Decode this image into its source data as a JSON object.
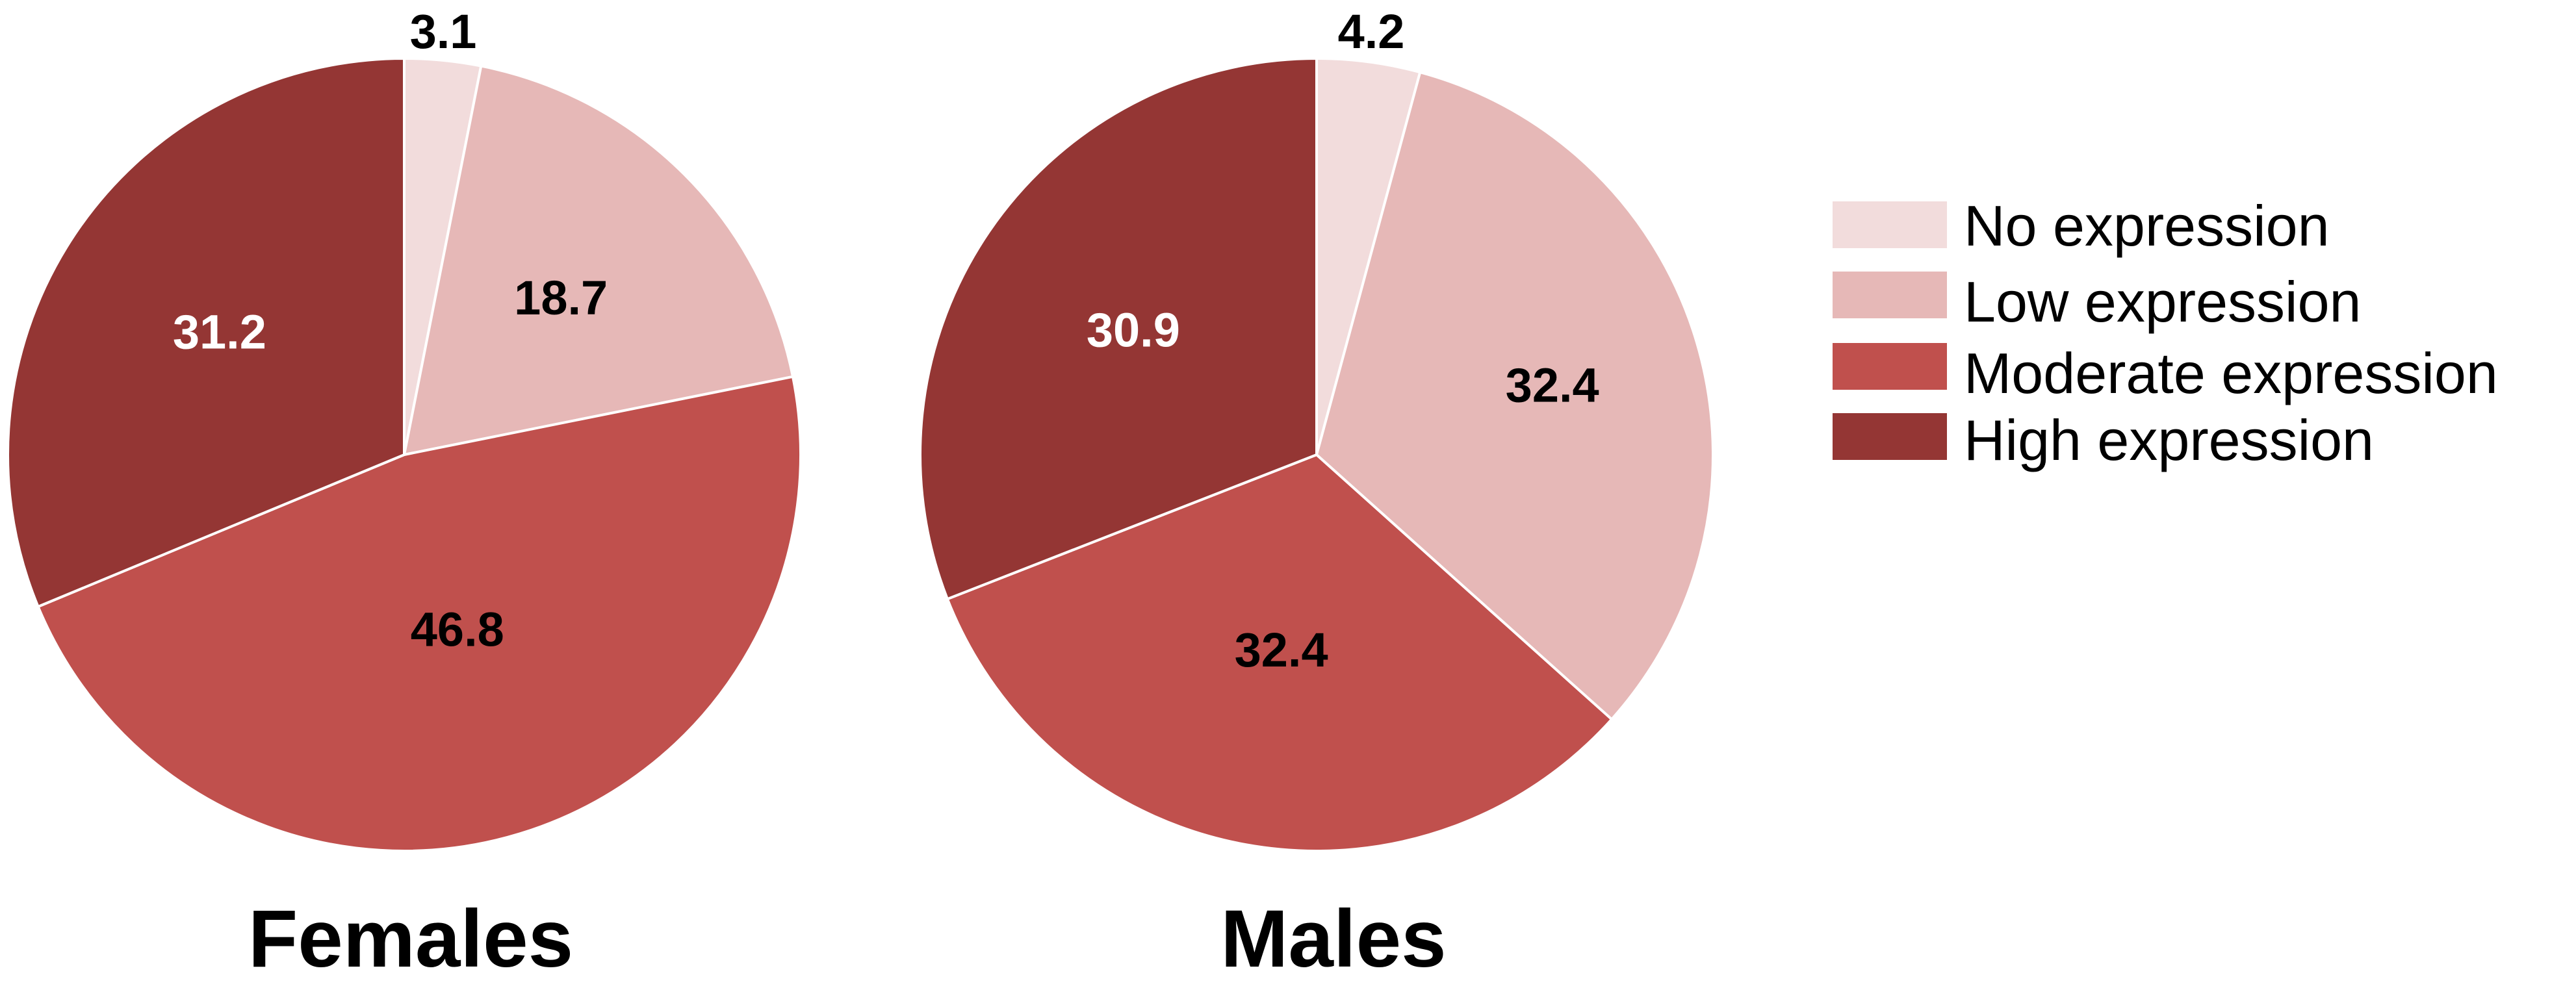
{
  "chart_data": [
    {
      "type": "pie",
      "title": "Females",
      "categories": [
        "No expression",
        "Low expression",
        "Moderate expression",
        "High expression"
      ],
      "values": [
        3.1,
        18.7,
        46.8,
        31.2
      ],
      "labels": [
        "3.1",
        "18.7",
        "46.8",
        "31.2"
      ]
    },
    {
      "type": "pie",
      "title": "Males",
      "categories": [
        "No expression",
        "Low expression",
        "Moderate expression",
        "High expression"
      ],
      "values": [
        4.2,
        32.4,
        32.4,
        30.9
      ],
      "labels": [
        "4.2",
        "32.4",
        "32.4",
        "30.9"
      ]
    }
  ],
  "legend": {
    "placement": "right",
    "items": [
      {
        "label": "No expression",
        "color": "#f2dcdc"
      },
      {
        "label": "Low expression",
        "color": "#e6b8b7"
      },
      {
        "label": "Moderate expression",
        "color": "#c0504d"
      },
      {
        "label": "High expression",
        "color": "#943634"
      }
    ]
  },
  "label_colors": [
    "#000000",
    "#000000",
    "#000000",
    "#ffffff"
  ]
}
